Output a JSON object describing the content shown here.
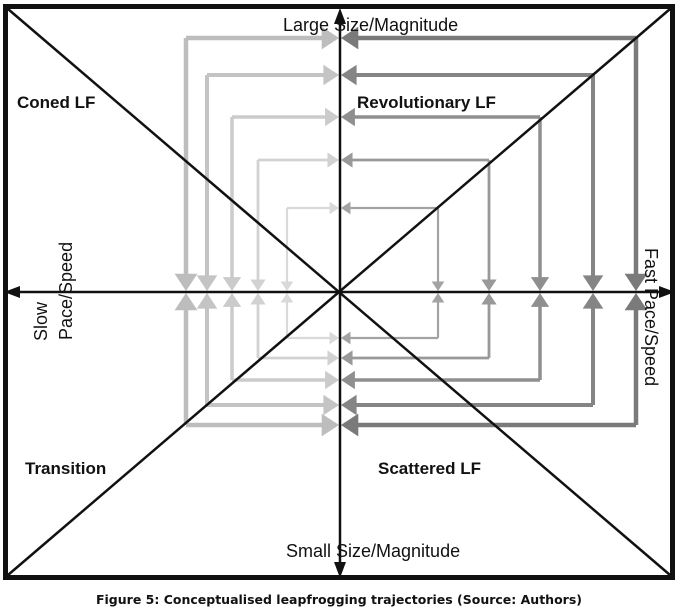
{
  "axes": {
    "top_label": "Large Size/Magnitude",
    "bottom_label": "Small Size/Magnitude",
    "left_label_line1": "Slow",
    "left_label_line2": "Pace/Speed",
    "right_label": "Fast Pace/Speed"
  },
  "quadrants": {
    "top_left": "Coned LF",
    "top_right": "Revolutionary LF",
    "bottom_left": "Transition",
    "bottom_right": "Scattered LF"
  },
  "caption": "Figure 5: Conceptualised leapfrogging trajectories (Source: Authors)",
  "colors": {
    "left_trajectories": [
      "#bdbdbd",
      "#c4c4c4",
      "#cbcbcb",
      "#d2d2d2",
      "#d9d9d9"
    ],
    "right_trajectories": [
      "#7a7a7a",
      "#858585",
      "#8f8f8f",
      "#999999",
      "#a3a3a3"
    ],
    "axes": "#111111"
  }
}
